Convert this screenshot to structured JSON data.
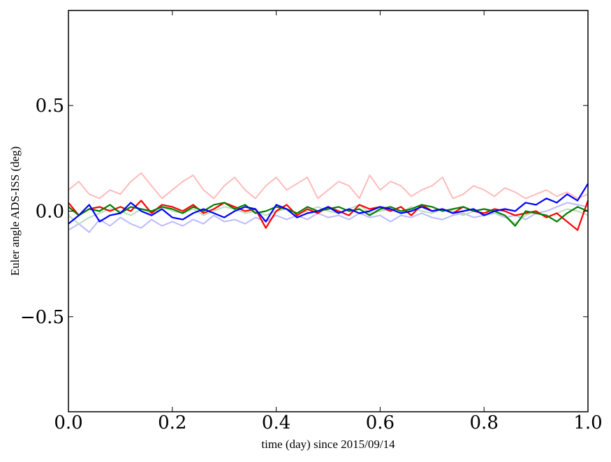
{
  "chart_data": {
    "type": "line",
    "title": "",
    "xlabel": "time (day) since 2015/09/14",
    "ylabel": "Euler angle ADS-ISS (deg)",
    "xlim": [
      0.0,
      1.0
    ],
    "ylim": [
      -0.95,
      0.95
    ],
    "grid": false,
    "x_ticks": [
      0.0,
      0.2,
      0.4,
      0.6,
      0.8,
      1.0
    ],
    "x_tick_labels": [
      "0.0",
      "0.2",
      "0.4",
      "0.6",
      "0.8",
      "1.0"
    ],
    "y_ticks": [
      -0.5,
      0.0,
      0.5
    ],
    "y_tick_labels": [
      "−0.5",
      "0.0",
      "0.5"
    ],
    "x": [
      0.0,
      0.02,
      0.04,
      0.06,
      0.08,
      0.1,
      0.12,
      0.14,
      0.16,
      0.18,
      0.2,
      0.22,
      0.24,
      0.26,
      0.28,
      0.3,
      0.32,
      0.34,
      0.36,
      0.38,
      0.4,
      0.42,
      0.44,
      0.46,
      0.48,
      0.5,
      0.52,
      0.54,
      0.56,
      0.58,
      0.6,
      0.62,
      0.64,
      0.66,
      0.68,
      0.7,
      0.72,
      0.74,
      0.76,
      0.78,
      0.8,
      0.82,
      0.84,
      0.86,
      0.88,
      0.9,
      0.92,
      0.94,
      0.96,
      0.98,
      1.0
    ],
    "series": [
      {
        "color": "#ffbbbb",
        "width": 2,
        "values": [
          0.1,
          0.14,
          0.08,
          0.06,
          0.1,
          0.08,
          0.14,
          0.18,
          0.12,
          0.06,
          0.1,
          0.14,
          0.17,
          0.1,
          0.06,
          0.12,
          0.16,
          0.1,
          0.06,
          0.12,
          0.16,
          0.1,
          0.13,
          0.16,
          0.06,
          0.1,
          0.14,
          0.12,
          0.06,
          0.17,
          0.1,
          0.14,
          0.12,
          0.07,
          0.1,
          0.12,
          0.16,
          0.06,
          0.08,
          0.12,
          0.1,
          0.07,
          0.11,
          0.09,
          0.06,
          0.08,
          0.1,
          0.07,
          0.09,
          0.06,
          0.08
        ]
      },
      {
        "color": "#bbbbff",
        "width": 2,
        "values": [
          -0.09,
          -0.06,
          -0.1,
          -0.04,
          -0.07,
          -0.03,
          -0.06,
          -0.08,
          -0.04,
          -0.07,
          -0.05,
          -0.07,
          -0.04,
          -0.06,
          -0.02,
          -0.05,
          -0.04,
          -0.06,
          -0.03,
          -0.05,
          -0.02,
          -0.04,
          -0.02,
          -0.04,
          -0.01,
          -0.03,
          -0.02,
          -0.04,
          -0.01,
          -0.03,
          -0.02,
          -0.05,
          -0.02,
          -0.03,
          -0.01,
          -0.03,
          -0.04,
          -0.02,
          -0.01,
          -0.03,
          -0.02,
          -0.01,
          -0.03,
          -0.02,
          -0.04,
          -0.01,
          0.0,
          0.02,
          0.04,
          0.03,
          0.02
        ]
      },
      {
        "color": "#bbddbb",
        "width": 2,
        "values": [
          -0.02,
          -0.06,
          -0.03,
          -0.01,
          0.01,
          0.0,
          -0.02,
          0.01,
          -0.01,
          0.02,
          0.0,
          -0.01,
          0.01,
          -0.02,
          0.0,
          0.02,
          0.01,
          -0.01,
          0.0,
          -0.02,
          0.0,
          0.01,
          -0.01,
          0.0,
          0.02,
          0.0,
          -0.01,
          0.01,
          0.03,
          -0.01,
          0.0,
          0.01,
          -0.01,
          0.02,
          0.0,
          -0.01,
          0.01,
          0.0,
          -0.02,
          0.0,
          0.01,
          -0.01,
          -0.02,
          -0.06,
          -0.02,
          0.0,
          -0.03,
          -0.01,
          0.01,
          0.0,
          -0.02
        ]
      },
      {
        "color": "#ff0000",
        "width": 2.2,
        "values": [
          0.04,
          -0.02,
          0.01,
          0.02,
          0.0,
          0.02,
          0.0,
          0.05,
          -0.01,
          0.03,
          0.02,
          0.0,
          0.03,
          -0.01,
          0.01,
          0.04,
          0.02,
          0.0,
          0.01,
          -0.08,
          0.0,
          0.03,
          -0.02,
          0.01,
          -0.01,
          0.02,
          0.0,
          -0.02,
          0.03,
          0.01,
          0.02,
          0.0,
          0.02,
          -0.02,
          0.03,
          0.0,
          0.01,
          -0.01,
          0.02,
          0.0,
          -0.01,
          0.01,
          0.0,
          -0.02,
          -0.01,
          0.0,
          -0.03,
          -0.01,
          -0.05,
          -0.09,
          0.05
        ]
      },
      {
        "color": "#008000",
        "width": 2.2,
        "values": [
          0.02,
          -0.02,
          0.01,
          0.0,
          0.03,
          -0.01,
          0.02,
          0.01,
          0.0,
          0.02,
          0.01,
          -0.01,
          0.02,
          0.0,
          0.03,
          0.04,
          0.01,
          0.03,
          -0.01,
          0.0,
          0.02,
          0.01,
          -0.01,
          0.02,
          0.0,
          0.01,
          0.02,
          0.0,
          0.01,
          -0.02,
          0.01,
          0.02,
          0.0,
          0.01,
          0.03,
          0.02,
          0.0,
          0.01,
          0.02,
          0.0,
          0.01,
          0.0,
          -0.02,
          -0.07,
          0.0,
          -0.01,
          -0.02,
          -0.05,
          -0.01,
          0.02,
          0.0
        ]
      },
      {
        "color": "#0000ff",
        "width": 2.2,
        "values": [
          -0.06,
          -0.02,
          0.03,
          -0.05,
          -0.02,
          -0.01,
          0.04,
          0.0,
          -0.02,
          0.01,
          -0.03,
          -0.04,
          -0.01,
          0.01,
          -0.01,
          -0.03,
          0.0,
          0.02,
          0.01,
          -0.05,
          0.03,
          0.01,
          -0.03,
          -0.01,
          0.0,
          0.02,
          -0.01,
          0.01,
          -0.01,
          0.0,
          0.02,
          0.01,
          -0.01,
          0.0,
          0.02,
          0.0,
          0.01,
          -0.01,
          0.0,
          0.01,
          -0.02,
          0.0,
          0.01,
          0.0,
          0.04,
          0.03,
          0.06,
          0.04,
          0.08,
          0.05,
          0.13
        ]
      }
    ]
  }
}
